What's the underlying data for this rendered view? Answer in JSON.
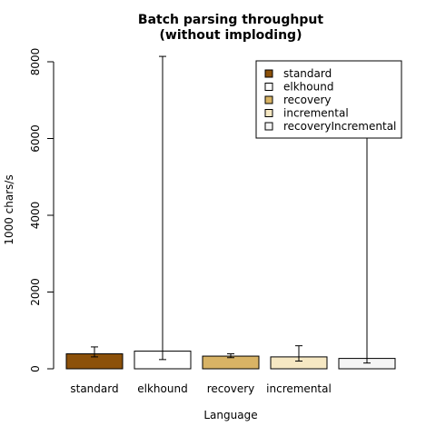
{
  "chart_data": {
    "type": "bar",
    "title_lines": [
      "Batch parsing throughput",
      "(without imploding)"
    ],
    "xlabel": "Language",
    "ylabel": "1000 chars/s",
    "ylim": [
      0,
      8000
    ],
    "yticks": [
      0,
      2000,
      4000,
      6000,
      8000
    ],
    "ytick_labels": [
      "0",
      "2000",
      "4000",
      "6000",
      "8000"
    ],
    "categories": [
      "standard",
      "elkhound",
      "recovery",
      "incremental",
      ""
    ],
    "series": [
      {
        "name": "standard",
        "color": "#8c510a",
        "value": 390,
        "err_low": 310,
        "err_high": 570
      },
      {
        "name": "elkhound",
        "color": "#ffffff",
        "value": 460,
        "err_low": 240,
        "err_high": 8140
      },
      {
        "name": "recovery",
        "color": "#d8b365",
        "value": 330,
        "err_low": 290,
        "err_high": 390
      },
      {
        "name": "incremental",
        "color": "#f6e8c3",
        "value": 310,
        "err_low": 200,
        "err_high": 600
      },
      {
        "name": "recoveryIncremental",
        "color": "#f5f5f5",
        "value": 270,
        "err_low": 150,
        "err_high": 6180
      }
    ],
    "legend": {
      "position": "top-right",
      "entries": [
        "standard",
        "elkhound",
        "recovery",
        "incremental",
        "recoveryIncremental"
      ]
    }
  }
}
